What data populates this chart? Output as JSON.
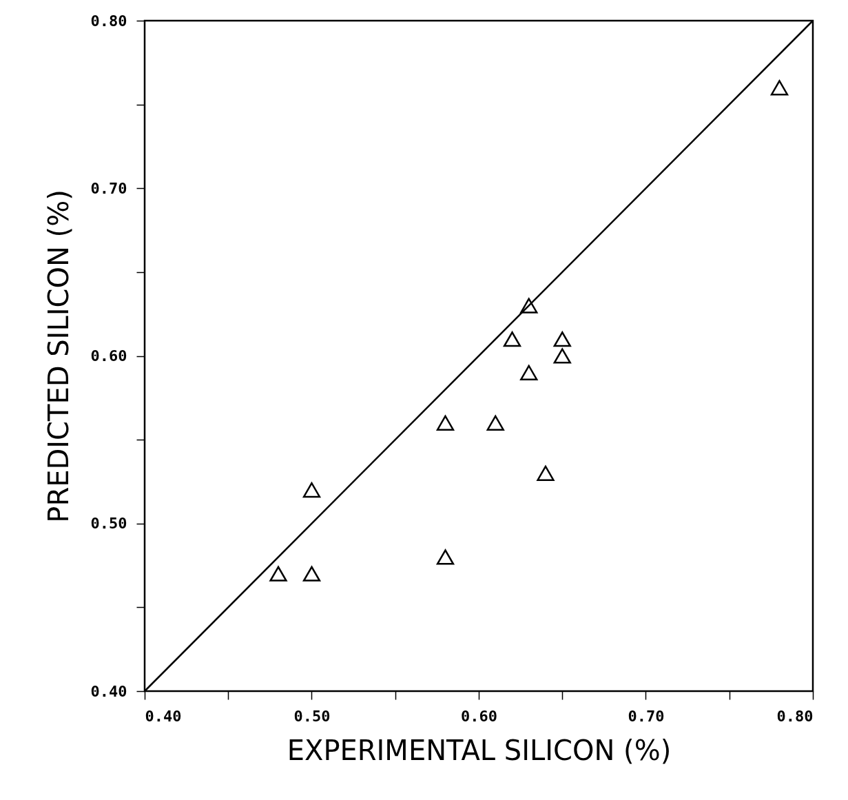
{
  "chart_data": {
    "type": "scatter",
    "xlabel": "EXPERIMENTAL SILICON (%)",
    "ylabel": "PREDICTED SILICON (%)",
    "xlim": [
      0.4,
      0.8
    ],
    "ylim": [
      0.4,
      0.8
    ],
    "xticks": [
      {
        "value": 0.4,
        "label": "0.40"
      },
      {
        "value": 0.45,
        "label": null
      },
      {
        "value": 0.5,
        "label": "0.50"
      },
      {
        "value": 0.55,
        "label": null
      },
      {
        "value": 0.6,
        "label": "0.60"
      },
      {
        "value": 0.65,
        "label": null
      },
      {
        "value": 0.7,
        "label": "0.70"
      },
      {
        "value": 0.75,
        "label": null
      },
      {
        "value": 0.8,
        "label": "0.80"
      }
    ],
    "yticks": [
      {
        "value": 0.4,
        "label": "0.40"
      },
      {
        "value": 0.45,
        "label": null
      },
      {
        "value": 0.5,
        "label": "0.50"
      },
      {
        "value": 0.55,
        "label": null
      },
      {
        "value": 0.6,
        "label": "0.60"
      },
      {
        "value": 0.65,
        "label": null
      },
      {
        "value": 0.7,
        "label": "0.70"
      },
      {
        "value": 0.75,
        "label": null
      },
      {
        "value": 0.8,
        "label": "0.80"
      }
    ],
    "series": [
      {
        "marker": "triangle",
        "color": "#000000",
        "x": [
          0.78,
          0.63,
          0.62,
          0.65,
          0.65,
          0.63,
          0.58,
          0.61,
          0.64,
          0.5,
          0.48,
          0.5,
          0.58
        ],
        "values": [
          0.76,
          0.63,
          0.61,
          0.61,
          0.6,
          0.59,
          0.56,
          0.56,
          0.53,
          0.52,
          0.47,
          0.47,
          0.48
        ]
      },
      {
        "type": "line",
        "color": "#000000",
        "x": [
          0.4,
          0.8
        ],
        "values": [
          0.4,
          0.8
        ]
      }
    ]
  }
}
